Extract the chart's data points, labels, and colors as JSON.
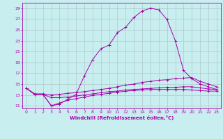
{
  "xlabel": "Windchill (Refroidissement éolien,°C)",
  "bg_color": "#c8eef0",
  "line_color": "#aa00aa",
  "grid_color": "#b0c8cc",
  "xlim": [
    -0.5,
    23.5
  ],
  "ylim": [
    10.5,
    30.0
  ],
  "yticks": [
    11,
    13,
    15,
    17,
    19,
    21,
    23,
    25,
    27,
    29
  ],
  "xticks": [
    0,
    1,
    2,
    3,
    4,
    5,
    6,
    7,
    8,
    9,
    10,
    11,
    12,
    13,
    14,
    15,
    16,
    17,
    18,
    19,
    20,
    21,
    22,
    23
  ],
  "curve1_x": [
    0,
    1,
    2,
    3,
    4,
    5,
    6,
    7,
    8,
    9,
    10,
    11,
    12,
    13,
    14,
    15,
    16,
    17,
    18,
    19,
    20,
    21,
    22,
    23
  ],
  "curve1_y": [
    14.2,
    13.1,
    13.1,
    11.0,
    11.3,
    12.2,
    13.1,
    16.5,
    19.5,
    21.5,
    22.2,
    24.5,
    25.5,
    27.3,
    28.5,
    29.0,
    28.7,
    26.9,
    23.0,
    17.5,
    16.0,
    15.0,
    14.5,
    14.0
  ],
  "curve2_x": [
    0,
    1,
    2,
    3,
    4,
    5,
    6,
    7,
    8,
    9,
    10,
    11,
    12,
    13,
    14,
    15,
    16,
    17,
    18,
    19,
    20,
    21,
    22,
    23
  ],
  "curve2_y": [
    14.2,
    13.2,
    13.2,
    13.0,
    13.1,
    13.3,
    13.4,
    13.6,
    13.8,
    14.0,
    14.2,
    14.5,
    14.8,
    15.0,
    15.3,
    15.5,
    15.7,
    15.8,
    16.0,
    16.1,
    16.2,
    15.5,
    15.0,
    14.5
  ],
  "curve3_x": [
    0,
    1,
    2,
    3,
    4,
    5,
    6,
    7,
    8,
    9,
    10,
    11,
    12,
    13,
    14,
    15,
    16,
    17,
    18,
    19,
    20,
    21,
    22,
    23
  ],
  "curve3_y": [
    14.2,
    13.1,
    13.1,
    12.5,
    12.5,
    12.6,
    12.8,
    13.0,
    13.2,
    13.4,
    13.6,
    13.7,
    13.9,
    14.0,
    14.1,
    14.2,
    14.3,
    14.4,
    14.4,
    14.5,
    14.5,
    14.3,
    14.1,
    14.0
  ],
  "curve4_x": [
    0,
    1,
    2,
    3,
    4,
    5,
    6,
    7,
    8,
    9,
    10,
    11,
    12,
    13,
    14,
    15,
    16,
    17,
    18,
    19,
    20,
    21,
    22,
    23
  ],
  "curve4_y": [
    14.2,
    13.1,
    13.1,
    11.0,
    11.5,
    12.0,
    12.3,
    12.6,
    12.9,
    13.1,
    13.3,
    13.5,
    13.7,
    13.8,
    13.9,
    14.0,
    14.0,
    14.0,
    14.0,
    14.0,
    13.9,
    13.8,
    13.7,
    13.7
  ]
}
